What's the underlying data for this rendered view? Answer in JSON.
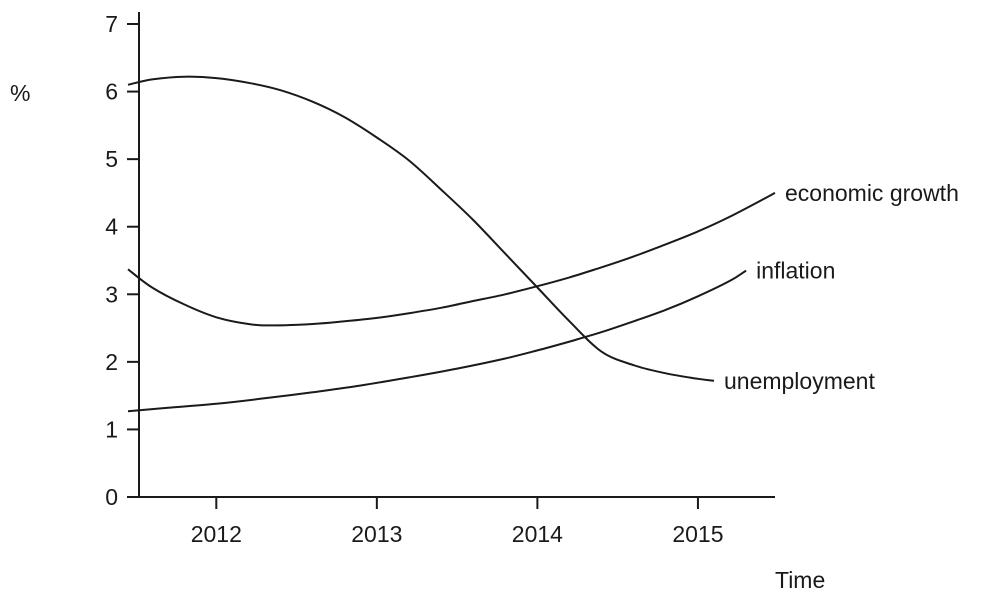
{
  "chart_data": {
    "type": "line",
    "title": "",
    "xlabel": "Time",
    "ylabel": "%",
    "xlim": [
      2011.45,
      2015.48
    ],
    "ylim": [
      0,
      7
    ],
    "x_ticks": [
      2012,
      2013,
      2014,
      2015
    ],
    "y_ticks": [
      0,
      1,
      2,
      3,
      4,
      5,
      6,
      7
    ],
    "grid": false,
    "legend": "none",
    "series": [
      {
        "name": "unemployment",
        "x": [
          2011.45,
          2011.6,
          2011.8,
          2012.0,
          2012.2,
          2012.4,
          2012.6,
          2012.8,
          2013.0,
          2013.2,
          2013.4,
          2013.6,
          2013.8,
          2014.0,
          2014.2,
          2014.4,
          2014.6,
          2014.8,
          2015.0,
          2015.1
        ],
        "y": [
          6.1,
          6.18,
          6.22,
          6.2,
          6.13,
          6.02,
          5.85,
          5.62,
          5.32,
          4.98,
          4.55,
          4.1,
          3.6,
          3.1,
          2.6,
          2.15,
          1.95,
          1.83,
          1.75,
          1.72
        ]
      },
      {
        "name": "economic growth",
        "x": [
          2011.45,
          2011.6,
          2011.8,
          2012.0,
          2012.2,
          2012.35,
          2012.6,
          2012.8,
          2013.0,
          2013.2,
          2013.4,
          2013.6,
          2013.8,
          2014.0,
          2014.2,
          2014.4,
          2014.6,
          2014.8,
          2015.0,
          2015.2,
          2015.48
        ],
        "y": [
          3.37,
          3.1,
          2.85,
          2.66,
          2.56,
          2.54,
          2.56,
          2.6,
          2.65,
          2.72,
          2.8,
          2.9,
          3.0,
          3.12,
          3.25,
          3.4,
          3.56,
          3.74,
          3.93,
          4.15,
          4.5
        ]
      },
      {
        "name": "inflation",
        "x": [
          2011.45,
          2011.7,
          2012.0,
          2012.3,
          2012.6,
          2012.9,
          2013.2,
          2013.5,
          2013.8,
          2014.0,
          2014.2,
          2014.4,
          2014.6,
          2014.8,
          2015.0,
          2015.2,
          2015.3
        ],
        "y": [
          1.27,
          1.32,
          1.38,
          1.46,
          1.55,
          1.65,
          1.77,
          1.9,
          2.05,
          2.17,
          2.3,
          2.44,
          2.6,
          2.77,
          2.97,
          3.2,
          3.35
        ]
      }
    ]
  }
}
